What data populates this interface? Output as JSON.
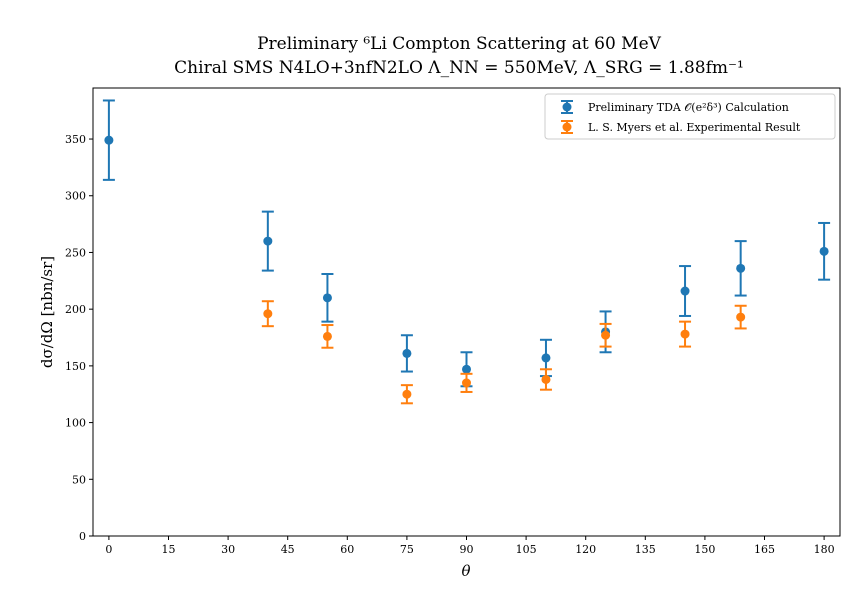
{
  "chart_data": {
    "type": "scatter",
    "title": "Preliminary ⁶Li Compton Scattering at 60 MeV",
    "subtitle": "Chiral SMS N4LO+3nfN2LO Λ_NN = 550MeV, Λ_SRG = 1.88fm⁻¹",
    "xlabel": "θ",
    "ylabel": "dσ/dΩ [nbn/sr]",
    "xlim": [
      -4,
      184
    ],
    "ylim": [
      0,
      395
    ],
    "xticks": [
      0,
      15,
      30,
      45,
      60,
      75,
      90,
      105,
      120,
      135,
      150,
      165,
      180
    ],
    "yticks": [
      0,
      50,
      100,
      150,
      200,
      250,
      300,
      350
    ],
    "grid": false,
    "legend_position": "top-right",
    "series": [
      {
        "name": "Preliminary TDA 𝒪(e²δ³) Calculation",
        "color": "#1f77b4",
        "x": [
          0,
          40,
          55,
          75,
          90,
          110,
          125,
          145,
          159,
          180
        ],
        "y": [
          349,
          260,
          210,
          161,
          147,
          157,
          180,
          216,
          236,
          251
        ],
        "err": [
          35,
          26,
          21,
          16,
          15,
          16,
          18,
          22,
          24,
          25
        ]
      },
      {
        "name": "L. S. Myers et al. Experimental Result",
        "color": "#ff7f0e",
        "x": [
          40,
          55,
          75,
          90,
          110,
          125,
          145,
          159
        ],
        "y": [
          196,
          176,
          125,
          135,
          138,
          177,
          178,
          193
        ],
        "err": [
          11,
          10,
          8,
          8,
          9,
          10,
          11,
          10
        ]
      }
    ]
  }
}
